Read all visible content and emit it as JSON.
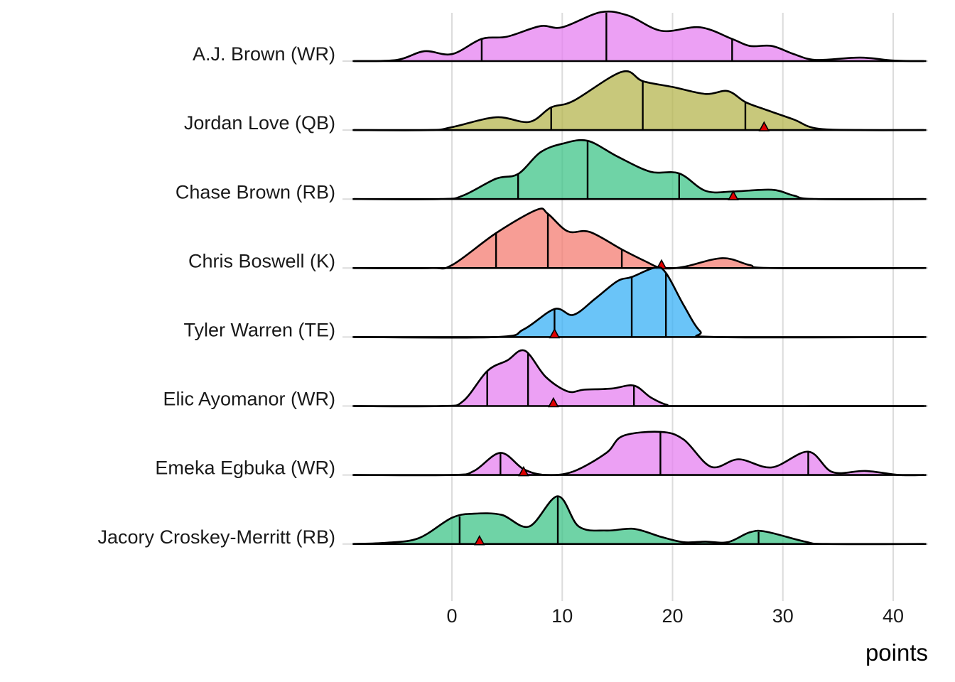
{
  "chart_data": {
    "type": "ridgeline",
    "title": "",
    "xlabel": "points",
    "ylabel": "",
    "xlim": [
      -9,
      43
    ],
    "xticks": [
      0,
      10,
      20,
      30,
      40
    ],
    "xtick_labels": [
      "0",
      "10",
      "20",
      "30",
      "40"
    ],
    "grid": true,
    "legend": "none",
    "marker_shape": "triangle",
    "marker_color": "#e00000",
    "series": [
      {
        "name": "A.J. Brown (WR)",
        "color": "#e680f0",
        "quantiles": [
          2.7,
          14.0,
          25.4
        ],
        "actual": null,
        "density": [
          [
            -9,
            0
          ],
          [
            -5,
            0.02
          ],
          [
            -2.5,
            0.17
          ],
          [
            0,
            0.12
          ],
          [
            2.7,
            0.38
          ],
          [
            5,
            0.42
          ],
          [
            8,
            0.6
          ],
          [
            10,
            0.58
          ],
          [
            13.5,
            0.84
          ],
          [
            16,
            0.78
          ],
          [
            19,
            0.52
          ],
          [
            22.5,
            0.58
          ],
          [
            25.4,
            0.38
          ],
          [
            27,
            0.26
          ],
          [
            29,
            0.26
          ],
          [
            31,
            0.12
          ],
          [
            33,
            0.02
          ],
          [
            37,
            0.06
          ],
          [
            40,
            0.01
          ],
          [
            43,
            0
          ]
        ]
      },
      {
        "name": "Jordan Love (QB)",
        "color": "#b5b64f",
        "quantiles": [
          9.0,
          17.3,
          26.6
        ],
        "actual": 28.3,
        "density": [
          [
            -9,
            0
          ],
          [
            -2,
            0
          ],
          [
            0,
            0.05
          ],
          [
            4,
            0.22
          ],
          [
            7,
            0.14
          ],
          [
            9,
            0.39
          ],
          [
            11,
            0.5
          ],
          [
            15.4,
            1.0
          ],
          [
            17.3,
            0.84
          ],
          [
            20,
            0.74
          ],
          [
            23,
            0.62
          ],
          [
            25,
            0.67
          ],
          [
            26.6,
            0.48
          ],
          [
            28.3,
            0.36
          ],
          [
            31,
            0.18
          ],
          [
            33,
            0.03
          ],
          [
            37,
            0
          ],
          [
            43,
            0
          ]
        ]
      },
      {
        "name": "Chase Brown (RB)",
        "color": "#3fc488",
        "quantiles": [
          6.0,
          12.3,
          20.6
        ],
        "actual": 25.5,
        "density": [
          [
            -9,
            0
          ],
          [
            -1,
            0.0
          ],
          [
            1,
            0.06
          ],
          [
            4,
            0.35
          ],
          [
            6,
            0.43
          ],
          [
            8,
            0.8
          ],
          [
            10,
            0.95
          ],
          [
            12.3,
            1.0
          ],
          [
            15,
            0.73
          ],
          [
            18,
            0.47
          ],
          [
            20.6,
            0.44
          ],
          [
            23,
            0.14
          ],
          [
            25.5,
            0.13
          ],
          [
            29,
            0.16
          ],
          [
            31,
            0.06
          ],
          [
            33,
            0
          ],
          [
            43,
            0
          ]
        ]
      },
      {
        "name": "Chris Boswell (K)",
        "color": "#f47c72",
        "quantiles": [
          4.0,
          8.7,
          15.4
        ],
        "actual": 19.0,
        "density": [
          [
            -9,
            0
          ],
          [
            -2,
            0.0
          ],
          [
            0,
            0.05
          ],
          [
            4,
            0.6
          ],
          [
            7.7,
            1.0
          ],
          [
            8.7,
            0.93
          ],
          [
            10.5,
            0.63
          ],
          [
            12.5,
            0.62
          ],
          [
            15.4,
            0.32
          ],
          [
            17.5,
            0.12
          ],
          [
            19,
            0.0
          ],
          [
            21,
            0.02
          ],
          [
            24.5,
            0.17
          ],
          [
            27,
            0.05
          ],
          [
            29,
            0
          ],
          [
            43,
            0
          ]
        ]
      },
      {
        "name": "Tyler Warren (TE)",
        "color": "#38b0f5",
        "quantiles": [
          9.3,
          16.3,
          19.4
        ],
        "actual": 9.3,
        "density": [
          [
            -9,
            0
          ],
          [
            4,
            0.0
          ],
          [
            6.5,
            0.13
          ],
          [
            9.3,
            0.48
          ],
          [
            11,
            0.38
          ],
          [
            13,
            0.66
          ],
          [
            15,
            0.96
          ],
          [
            16.3,
            1.03
          ],
          [
            18.4,
            1.19
          ],
          [
            19.4,
            1.1
          ],
          [
            21,
            0.55
          ],
          [
            22.5,
            0.1
          ],
          [
            24,
            0
          ],
          [
            43,
            0
          ]
        ]
      },
      {
        "name": "Elic Ayomanor (WR)",
        "color": "#e680f0",
        "quantiles": [
          3.2,
          6.9,
          16.5
        ],
        "actual": 9.2,
        "density": [
          [
            -9,
            0
          ],
          [
            -1,
            0.0
          ],
          [
            1,
            0.08
          ],
          [
            3.2,
            0.6
          ],
          [
            5,
            0.78
          ],
          [
            6.6,
            0.95
          ],
          [
            8.5,
            0.5
          ],
          [
            10.5,
            0.25
          ],
          [
            12,
            0.28
          ],
          [
            14.5,
            0.3
          ],
          [
            16.5,
            0.35
          ],
          [
            18,
            0.15
          ],
          [
            19.5,
            0.02
          ],
          [
            21,
            0
          ],
          [
            43,
            0
          ]
        ]
      },
      {
        "name": "Emeka Egbuka (WR)",
        "color": "#e680f0",
        "quantiles": [
          4.4,
          18.9,
          32.3
        ],
        "actual": 6.5,
        "density": [
          [
            -9,
            0
          ],
          [
            0,
            0.0
          ],
          [
            2,
            0.07
          ],
          [
            4.4,
            0.38
          ],
          [
            6.5,
            0.1
          ],
          [
            8.5,
            0.0
          ],
          [
            11,
            0.06
          ],
          [
            14,
            0.38
          ],
          [
            15.5,
            0.67
          ],
          [
            18.9,
            0.74
          ],
          [
            21,
            0.61
          ],
          [
            23.5,
            0.14
          ],
          [
            26,
            0.27
          ],
          [
            29,
            0.13
          ],
          [
            32.3,
            0.4
          ],
          [
            34.5,
            0.05
          ],
          [
            37.5,
            0.07
          ],
          [
            40.5,
            0.0
          ],
          [
            43,
            0
          ]
        ]
      },
      {
        "name": "Jacory Croskey-Merritt (RB)",
        "color": "#3fc488",
        "quantiles": [
          0.7,
          9.6,
          27.8
        ],
        "actual": 2.5,
        "density": [
          [
            -9,
            0
          ],
          [
            -6,
            0.02
          ],
          [
            -3,
            0.1
          ],
          [
            0,
            0.45
          ],
          [
            2,
            0.52
          ],
          [
            4.5,
            0.5
          ],
          [
            7,
            0.3
          ],
          [
            9.6,
            0.82
          ],
          [
            11.5,
            0.3
          ],
          [
            14,
            0.23
          ],
          [
            16.5,
            0.26
          ],
          [
            19,
            0.12
          ],
          [
            21,
            0.03
          ],
          [
            23,
            0.04
          ],
          [
            25,
            0.03
          ],
          [
            27,
            0.2
          ],
          [
            28.5,
            0.21
          ],
          [
            32,
            0.04
          ],
          [
            34,
            0
          ],
          [
            43,
            0
          ]
        ]
      }
    ]
  }
}
